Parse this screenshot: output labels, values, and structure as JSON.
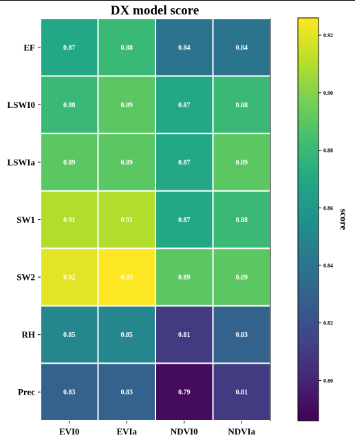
{
  "chart_data": {
    "type": "heatmap",
    "title": "DX model score",
    "x_categories": [
      "EVI0",
      "EVIa",
      "NDVI0",
      "NDVIa"
    ],
    "y_categories": [
      "EF",
      "LSWI0",
      "LSWIa",
      "SW1",
      "SW2",
      "RH",
      "Prec"
    ],
    "values": [
      [
        0.87,
        0.88,
        0.84,
        0.84
      ],
      [
        0.88,
        0.89,
        0.87,
        0.88
      ],
      [
        0.89,
        0.89,
        0.87,
        0.89
      ],
      [
        0.91,
        0.91,
        0.87,
        0.88
      ],
      [
        0.92,
        0.93,
        0.89,
        0.89
      ],
      [
        0.85,
        0.85,
        0.81,
        0.83
      ],
      [
        0.83,
        0.83,
        0.79,
        0.81
      ]
    ],
    "colorbar": {
      "label": "score",
      "range": [
        0.786,
        0.926
      ],
      "ticks": [
        "0.80",
        "0.82",
        "0.84",
        "0.86",
        "0.88",
        "0.90",
        "0.92"
      ],
      "colormap": "viridis"
    },
    "cell_label_color": "#ffffff",
    "grid_line_color": "#ffffff"
  }
}
